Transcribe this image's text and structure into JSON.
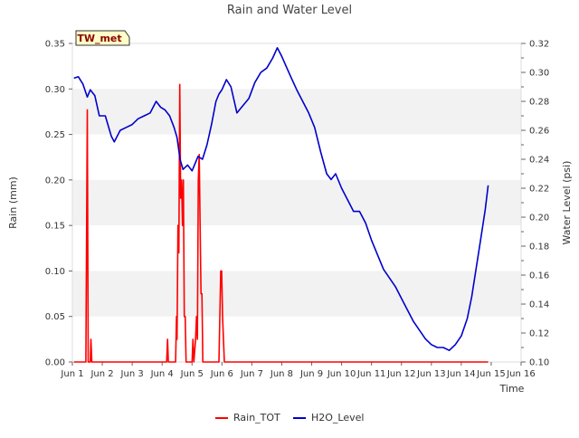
{
  "chart_data": {
    "type": "line",
    "title": "Rain and Water Level",
    "site_label": "TW_met",
    "xlabel": "Time",
    "ylabel_left": "Rain (mm)",
    "ylabel_right": "Water Level (psi)",
    "xlim": [
      1,
      16
    ],
    "ylim_left": [
      0,
      0.35
    ],
    "ylim_right": [
      0.1,
      0.32
    ],
    "x_ticks": [
      {
        "v": 1,
        "label": "Jun 1"
      },
      {
        "v": 2,
        "label": "Jun 2"
      },
      {
        "v": 3,
        "label": "Jun 3"
      },
      {
        "v": 4,
        "label": "Jun 4"
      },
      {
        "v": 5,
        "label": "Jun 5"
      },
      {
        "v": 6,
        "label": "Jun 6"
      },
      {
        "v": 7,
        "label": "Jun 7"
      },
      {
        "v": 8,
        "label": "Jun 8"
      },
      {
        "v": 9,
        "label": "Jun 9"
      },
      {
        "v": 10,
        "label": "Jun 10"
      },
      {
        "v": 11,
        "label": "Jun 11"
      },
      {
        "v": 12,
        "label": "Jun 12"
      },
      {
        "v": 13,
        "label": "Jun 13"
      },
      {
        "v": 14,
        "label": "Jun 14"
      },
      {
        "v": 15,
        "label": "Jun 15"
      },
      {
        "v": 16,
        "label": "Jun 16"
      }
    ],
    "y_left_ticks": [
      "0.00",
      "0.05",
      "0.10",
      "0.15",
      "0.20",
      "0.25",
      "0.30",
      "0.35"
    ],
    "y_right_ticks": [
      "0.10",
      "0.12",
      "0.14",
      "0.16",
      "0.18",
      "0.20",
      "0.22",
      "0.24",
      "0.26",
      "0.28",
      "0.30",
      "0.32"
    ],
    "grid": "horizontal bands",
    "legend_position": "bottom-center",
    "series": [
      {
        "name": "Rain_TOT",
        "color": "#ff0000",
        "axis": "left",
        "points": [
          [
            1.05,
            0
          ],
          [
            1.45,
            0
          ],
          [
            1.5,
            0.277
          ],
          [
            1.53,
            0
          ],
          [
            1.6,
            0
          ],
          [
            1.62,
            0.025
          ],
          [
            1.65,
            0
          ],
          [
            4.15,
            0
          ],
          [
            4.18,
            0.025
          ],
          [
            4.21,
            0
          ],
          [
            4.45,
            0
          ],
          [
            4.48,
            0.05
          ],
          [
            4.5,
            0.025
          ],
          [
            4.53,
            0.15
          ],
          [
            4.56,
            0.12
          ],
          [
            4.59,
            0.305
          ],
          [
            4.62,
            0.18
          ],
          [
            4.65,
            0.2
          ],
          [
            4.68,
            0.15
          ],
          [
            4.71,
            0.2
          ],
          [
            4.74,
            0.05
          ],
          [
            4.77,
            0.05
          ],
          [
            4.8,
            0
          ],
          [
            5.0,
            0
          ],
          [
            5.03,
            0.025
          ],
          [
            5.06,
            0
          ],
          [
            5.12,
            0.025
          ],
          [
            5.15,
            0.05
          ],
          [
            5.18,
            0.025
          ],
          [
            5.21,
            0.2
          ],
          [
            5.24,
            0.228
          ],
          [
            5.27,
            0.15
          ],
          [
            5.3,
            0.075
          ],
          [
            5.33,
            0.075
          ],
          [
            5.36,
            0
          ],
          [
            5.9,
            0
          ],
          [
            5.93,
            0.05
          ],
          [
            5.96,
            0.1
          ],
          [
            5.99,
            0.1
          ],
          [
            6.02,
            0.05
          ],
          [
            6.05,
            0.025
          ],
          [
            6.08,
            0
          ],
          [
            14.9,
            0
          ]
        ]
      },
      {
        "name": "H2O_Level",
        "color": "#0000cc",
        "axis": "right",
        "points": [
          [
            1.05,
            0.296
          ],
          [
            1.2,
            0.297
          ],
          [
            1.35,
            0.292
          ],
          [
            1.5,
            0.283
          ],
          [
            1.6,
            0.288
          ],
          [
            1.75,
            0.284
          ],
          [
            1.9,
            0.27
          ],
          [
            2.1,
            0.27
          ],
          [
            2.3,
            0.256
          ],
          [
            2.4,
            0.252
          ],
          [
            2.6,
            0.26
          ],
          [
            2.8,
            0.262
          ],
          [
            3.0,
            0.264
          ],
          [
            3.2,
            0.268
          ],
          [
            3.4,
            0.27
          ],
          [
            3.6,
            0.272
          ],
          [
            3.8,
            0.28
          ],
          [
            3.95,
            0.276
          ],
          [
            4.1,
            0.274
          ],
          [
            4.25,
            0.27
          ],
          [
            4.4,
            0.262
          ],
          [
            4.5,
            0.255
          ],
          [
            4.6,
            0.24
          ],
          [
            4.7,
            0.233
          ],
          [
            4.85,
            0.236
          ],
          [
            5.0,
            0.232
          ],
          [
            5.2,
            0.242
          ],
          [
            5.35,
            0.24
          ],
          [
            5.5,
            0.25
          ],
          [
            5.65,
            0.264
          ],
          [
            5.8,
            0.28
          ],
          [
            5.9,
            0.285
          ],
          [
            6.0,
            0.288
          ],
          [
            6.15,
            0.295
          ],
          [
            6.3,
            0.29
          ],
          [
            6.5,
            0.272
          ],
          [
            6.7,
            0.277
          ],
          [
            6.9,
            0.282
          ],
          [
            7.1,
            0.293
          ],
          [
            7.3,
            0.3
          ],
          [
            7.5,
            0.303
          ],
          [
            7.7,
            0.31
          ],
          [
            7.85,
            0.317
          ],
          [
            8.0,
            0.311
          ],
          [
            8.15,
            0.304
          ],
          [
            8.3,
            0.297
          ],
          [
            8.5,
            0.288
          ],
          [
            8.7,
            0.28
          ],
          [
            8.9,
            0.272
          ],
          [
            9.1,
            0.262
          ],
          [
            9.3,
            0.245
          ],
          [
            9.5,
            0.23
          ],
          [
            9.65,
            0.226
          ],
          [
            9.8,
            0.23
          ],
          [
            10.0,
            0.22
          ],
          [
            10.2,
            0.212
          ],
          [
            10.4,
            0.204
          ],
          [
            10.6,
            0.204
          ],
          [
            10.8,
            0.196
          ],
          [
            11.0,
            0.184
          ],
          [
            11.2,
            0.174
          ],
          [
            11.4,
            0.164
          ],
          [
            11.6,
            0.158
          ],
          [
            11.8,
            0.152
          ],
          [
            12.0,
            0.144
          ],
          [
            12.2,
            0.136
          ],
          [
            12.4,
            0.128
          ],
          [
            12.6,
            0.122
          ],
          [
            12.8,
            0.116
          ],
          [
            13.0,
            0.112
          ],
          [
            13.2,
            0.11
          ],
          [
            13.4,
            0.11
          ],
          [
            13.6,
            0.108
          ],
          [
            13.8,
            0.112
          ],
          [
            14.0,
            0.118
          ],
          [
            14.2,
            0.13
          ],
          [
            14.35,
            0.145
          ],
          [
            14.5,
            0.165
          ],
          [
            14.65,
            0.185
          ],
          [
            14.8,
            0.205
          ],
          [
            14.9,
            0.222
          ]
        ]
      }
    ]
  }
}
